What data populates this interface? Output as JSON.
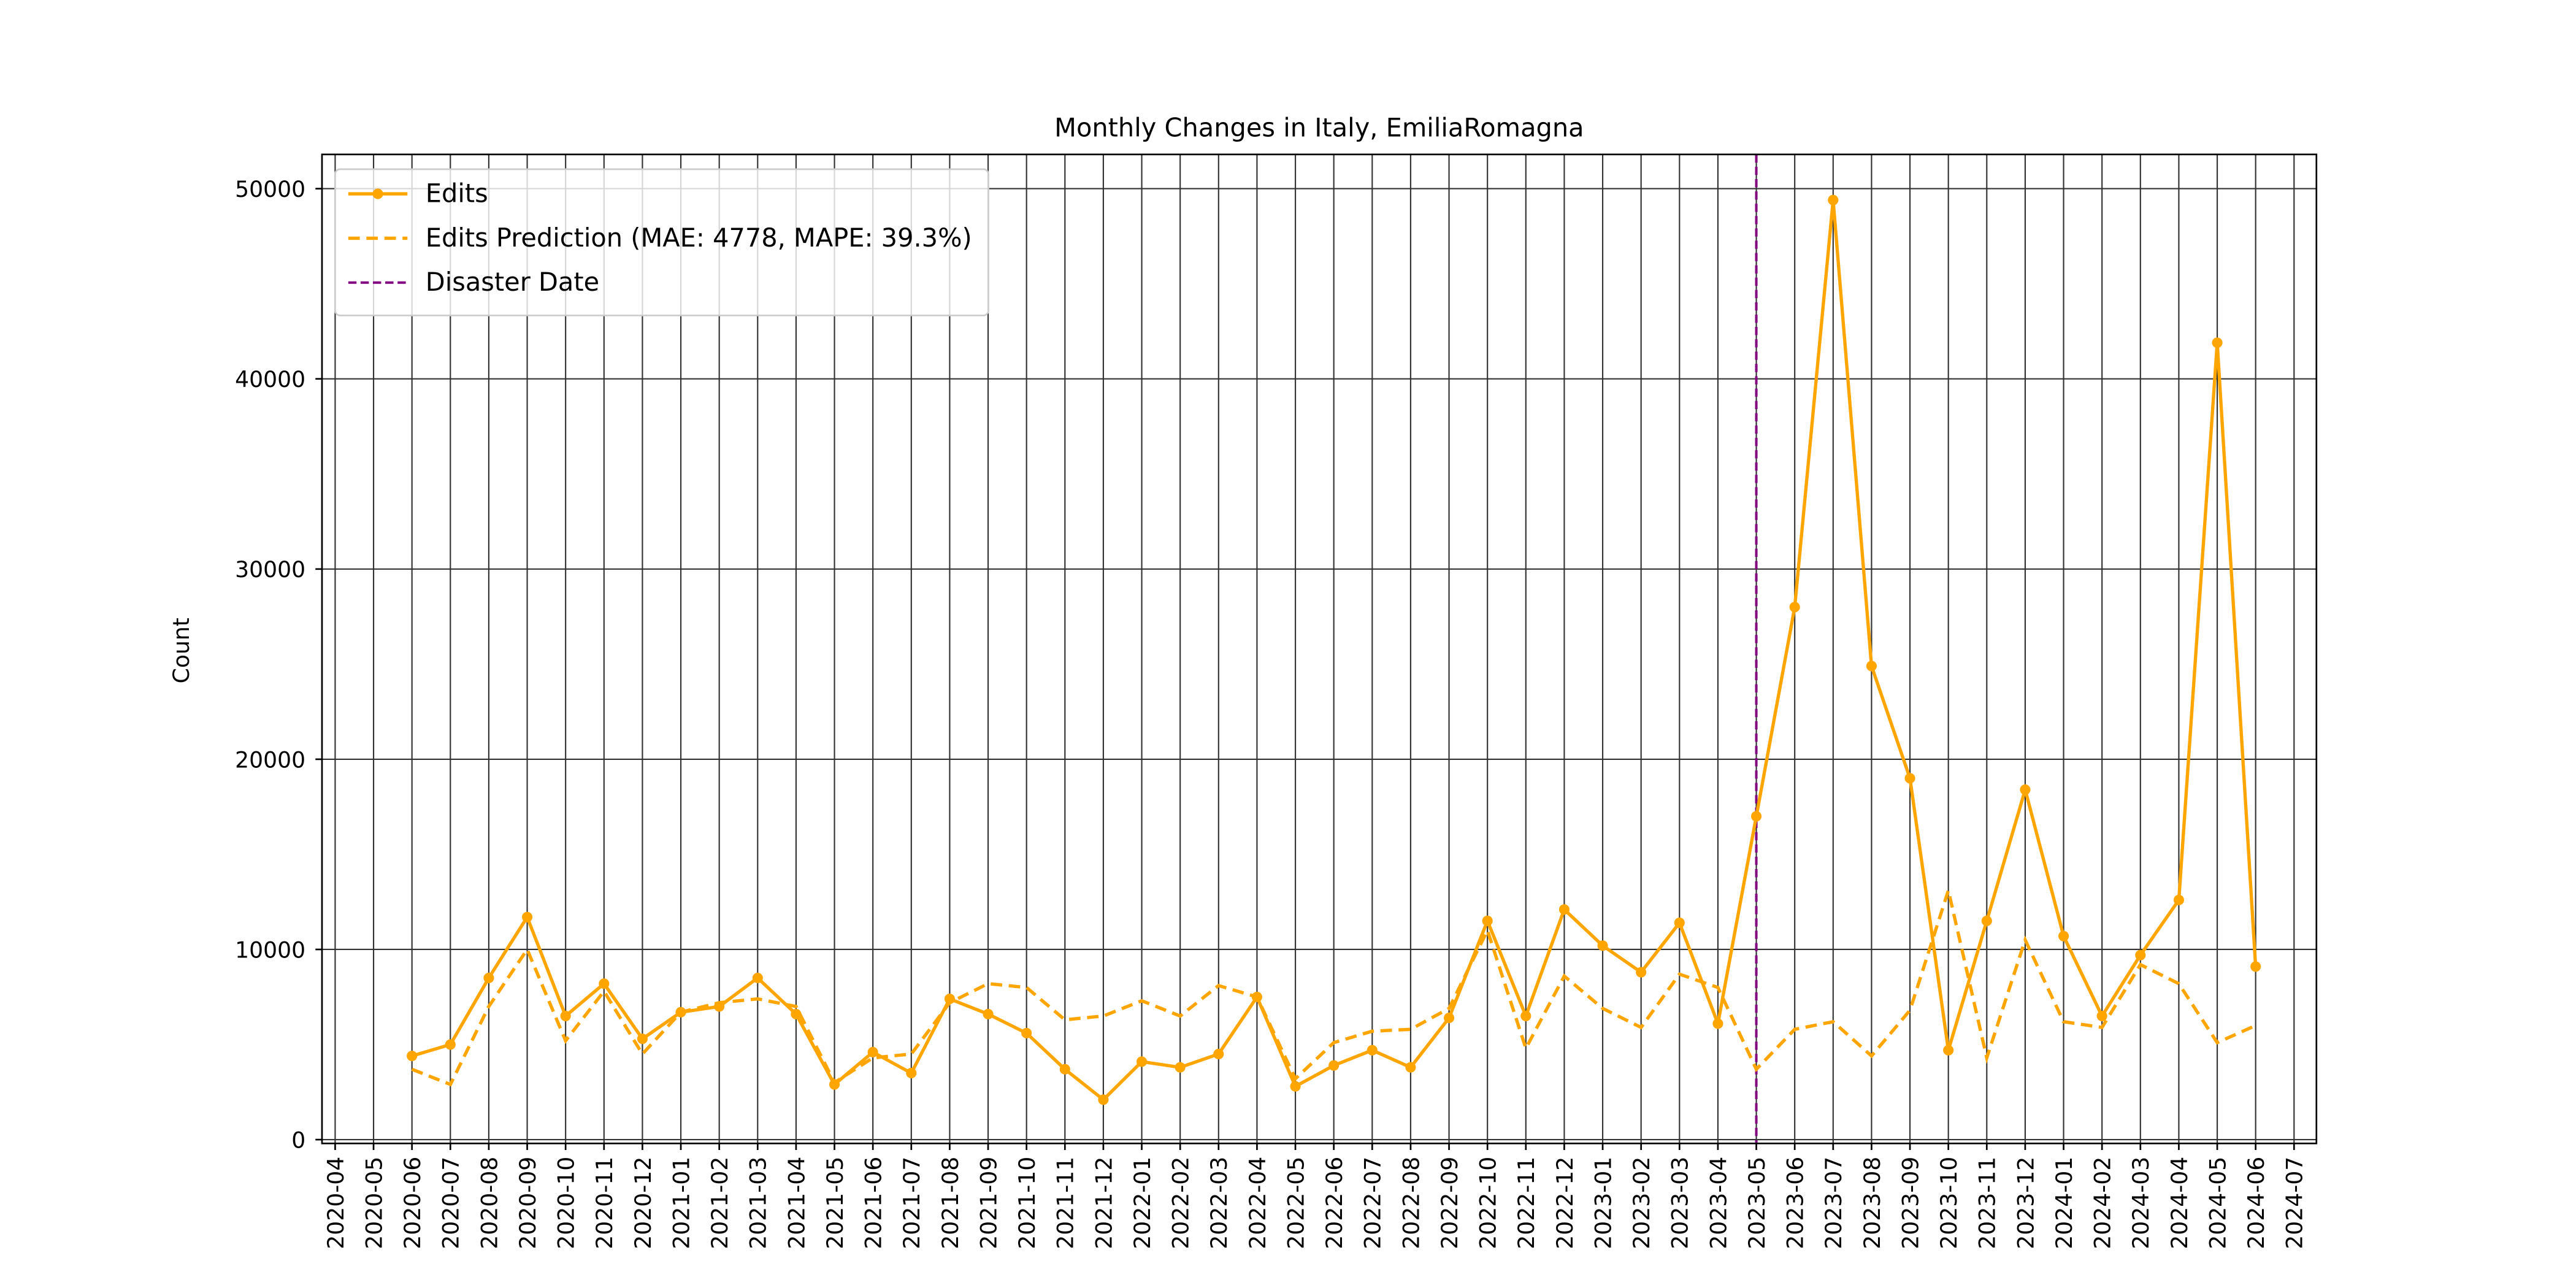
{
  "chart_data": {
    "type": "line",
    "title": "Monthly Changes in Italy, EmiliaRomagna",
    "y_label": "Count",
    "x": [
      "2020-06",
      "2020-07",
      "2020-08",
      "2020-09",
      "2020-10",
      "2020-11",
      "2020-12",
      "2021-01",
      "2021-02",
      "2021-03",
      "2021-04",
      "2021-05",
      "2021-06",
      "2021-07",
      "2021-08",
      "2021-09",
      "2021-10",
      "2021-11",
      "2021-12",
      "2022-01",
      "2022-02",
      "2022-03",
      "2022-04",
      "2022-05",
      "2022-06",
      "2022-07",
      "2022-08",
      "2022-09",
      "2022-10",
      "2022-11",
      "2022-12",
      "2023-01",
      "2023-02",
      "2023-03",
      "2023-04",
      "2023-05",
      "2023-06",
      "2023-07",
      "2023-08",
      "2023-09",
      "2023-10",
      "2023-11",
      "2023-12",
      "2024-01",
      "2024-02",
      "2024-03",
      "2024-04",
      "2024-05",
      "2024-06"
    ],
    "series": [
      {
        "name": "Edits",
        "color": "#ffa500",
        "style": "solid",
        "marker": true,
        "values": [
          4400,
          5000,
          8500,
          11700,
          6500,
          8200,
          5300,
          6700,
          7000,
          8500,
          6600,
          2900,
          4600,
          3500,
          7400,
          6600,
          5600,
          3700,
          2100,
          4100,
          3800,
          4500,
          7500,
          2800,
          3900,
          4700,
          3800,
          6400,
          11500,
          6500,
          12100,
          10200,
          8800,
          11400,
          6100,
          17000,
          28000,
          49400,
          24900,
          19000,
          4700,
          11500,
          18400,
          10700,
          6500,
          9700,
          12600,
          41900,
          9100
        ]
      },
      {
        "name": "Edits Prediction (MAE: 4778, MAPE: 39.3%)",
        "color": "#ffa500",
        "style": "dashed",
        "marker": false,
        "values": [
          3700,
          2900,
          7000,
          10000,
          5200,
          7800,
          4500,
          6700,
          7200,
          7400,
          7000,
          3000,
          4300,
          4500,
          7200,
          8200,
          8000,
          6300,
          6500,
          7300,
          6500,
          8100,
          7500,
          3200,
          5100,
          5700,
          5800,
          6900,
          11000,
          4800,
          8600,
          6900,
          5900,
          8700,
          8000,
          3700,
          5800,
          6200,
          4400,
          6800,
          13100,
          4300,
          10500,
          6200,
          5900,
          9200,
          8200,
          5100,
          6000
        ]
      }
    ],
    "vline": {
      "name": "Disaster Date",
      "x": "2023-05",
      "color": "#800080"
    },
    "ylim": [
      -200,
      51800
    ],
    "yticks": [
      0,
      10000,
      20000,
      30000,
      40000,
      50000
    ],
    "xticks": [
      "2020-04",
      "2020-05",
      "2020-06",
      "2020-07",
      "2020-08",
      "2020-09",
      "2020-10",
      "2020-11",
      "2020-12",
      "2021-01",
      "2021-02",
      "2021-03",
      "2021-04",
      "2021-05",
      "2021-06",
      "2021-07",
      "2021-08",
      "2021-09",
      "2021-10",
      "2021-11",
      "2021-12",
      "2022-01",
      "2022-02",
      "2022-03",
      "2022-04",
      "2022-05",
      "2022-06",
      "2022-07",
      "2022-08",
      "2022-09",
      "2022-10",
      "2022-11",
      "2022-12",
      "2023-01",
      "2023-02",
      "2023-03",
      "2023-04",
      "2023-05",
      "2023-06",
      "2023-07",
      "2023-08",
      "2023-09",
      "2023-10",
      "2023-11",
      "2023-12",
      "2024-01",
      "2024-02",
      "2024-03",
      "2024-04",
      "2024-05",
      "2024-06",
      "2024-07"
    ],
    "grid": true,
    "legend": "upper left"
  }
}
